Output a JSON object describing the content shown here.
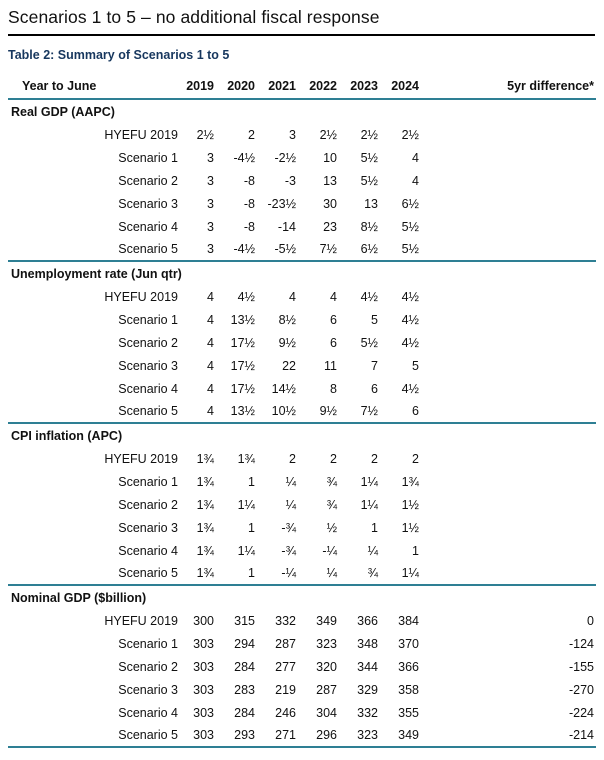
{
  "page": {
    "title": "Scenarios 1 to 5 – no additional fiscal response",
    "table_caption": "Table 2: Summary of Scenarios 1 to 5"
  },
  "colors": {
    "accent_teal": "#2e7f94",
    "caption_color": "#17375e",
    "title_rule": "#000000"
  },
  "table": {
    "header": {
      "label": "Year to June",
      "years": [
        "2019",
        "2020",
        "2021",
        "2022",
        "2023",
        "2024"
      ],
      "diff": "5yr difference*"
    },
    "sections": [
      {
        "name": "Real GDP (AAPC)",
        "rows": [
          {
            "label": "HYEFU 2019",
            "values": [
              "2½",
              "2",
              "3",
              "2½",
              "2½",
              "2½"
            ],
            "diff": ""
          },
          {
            "label": "Scenario 1",
            "values": [
              "3",
              "-4½",
              "-2½",
              "10",
              "5½",
              "4"
            ],
            "diff": ""
          },
          {
            "label": "Scenario 2",
            "values": [
              "3",
              "-8",
              "-3",
              "13",
              "5½",
              "4"
            ],
            "diff": ""
          },
          {
            "label": "Scenario 3",
            "values": [
              "3",
              "-8",
              "-23½",
              "30",
              "13",
              "6½"
            ],
            "diff": ""
          },
          {
            "label": "Scenario 4",
            "values": [
              "3",
              "-8",
              "-14",
              "23",
              "8½",
              "5½"
            ],
            "diff": ""
          },
          {
            "label": "Scenario 5",
            "values": [
              "3",
              "-4½",
              "-5½",
              "7½",
              "6½",
              "5½"
            ],
            "diff": ""
          }
        ]
      },
      {
        "name": "Unemployment rate (Jun qtr)",
        "rows": [
          {
            "label": "HYEFU 2019",
            "values": [
              "4",
              "4½",
              "4",
              "4",
              "4½",
              "4½"
            ],
            "diff": ""
          },
          {
            "label": "Scenario 1",
            "values": [
              "4",
              "13½",
              "8½",
              "6",
              "5",
              "4½"
            ],
            "diff": ""
          },
          {
            "label": "Scenario 2",
            "values": [
              "4",
              "17½",
              "9½",
              "6",
              "5½",
              "4½"
            ],
            "diff": ""
          },
          {
            "label": "Scenario 3",
            "values": [
              "4",
              "17½",
              "22",
              "11",
              "7",
              "5"
            ],
            "diff": ""
          },
          {
            "label": "Scenario 4",
            "values": [
              "4",
              "17½",
              "14½",
              "8",
              "6",
              "4½"
            ],
            "diff": ""
          },
          {
            "label": "Scenario 5",
            "values": [
              "4",
              "13½",
              "10½",
              "9½",
              "7½",
              "6"
            ],
            "diff": ""
          }
        ]
      },
      {
        "name": "CPI inflation (APC)",
        "rows": [
          {
            "label": "HYEFU 2019",
            "values": [
              "1¾",
              "1¾",
              "2",
              "2",
              "2",
              "2"
            ],
            "diff": ""
          },
          {
            "label": "Scenario 1",
            "values": [
              "1¾",
              "1",
              "¼",
              "¾",
              "1¼",
              "1¾"
            ],
            "diff": ""
          },
          {
            "label": "Scenario 2",
            "values": [
              "1¾",
              "1¼",
              "¼",
              "¾",
              "1¼",
              "1½"
            ],
            "diff": ""
          },
          {
            "label": "Scenario 3",
            "values": [
              "1¾",
              "1",
              "-¾",
              "½",
              "1",
              "1½"
            ],
            "diff": ""
          },
          {
            "label": "Scenario 4",
            "values": [
              "1¾",
              "1¼",
              "-¾",
              "-¼",
              "¼",
              "1"
            ],
            "diff": ""
          },
          {
            "label": "Scenario 5",
            "values": [
              "1¾",
              "1",
              "-¼",
              "¼",
              "¾",
              "1¼"
            ],
            "diff": ""
          }
        ]
      },
      {
        "name": "Nominal GDP ($billion)",
        "rows": [
          {
            "label": "HYEFU 2019",
            "values": [
              "300",
              "315",
              "332",
              "349",
              "366",
              "384"
            ],
            "diff": "0"
          },
          {
            "label": "Scenario 1",
            "values": [
              "303",
              "294",
              "287",
              "323",
              "348",
              "370"
            ],
            "diff": "-124"
          },
          {
            "label": "Scenario 2",
            "values": [
              "303",
              "284",
              "277",
              "320",
              "344",
              "366"
            ],
            "diff": "-155"
          },
          {
            "label": "Scenario 3",
            "values": [
              "303",
              "283",
              "219",
              "287",
              "329",
              "358"
            ],
            "diff": "-270"
          },
          {
            "label": "Scenario 4",
            "values": [
              "303",
              "284",
              "246",
              "304",
              "332",
              "355"
            ],
            "diff": "-224"
          },
          {
            "label": "Scenario 5",
            "values": [
              "303",
              "293",
              "271",
              "296",
              "323",
              "349"
            ],
            "diff": "-214"
          }
        ]
      }
    ]
  }
}
